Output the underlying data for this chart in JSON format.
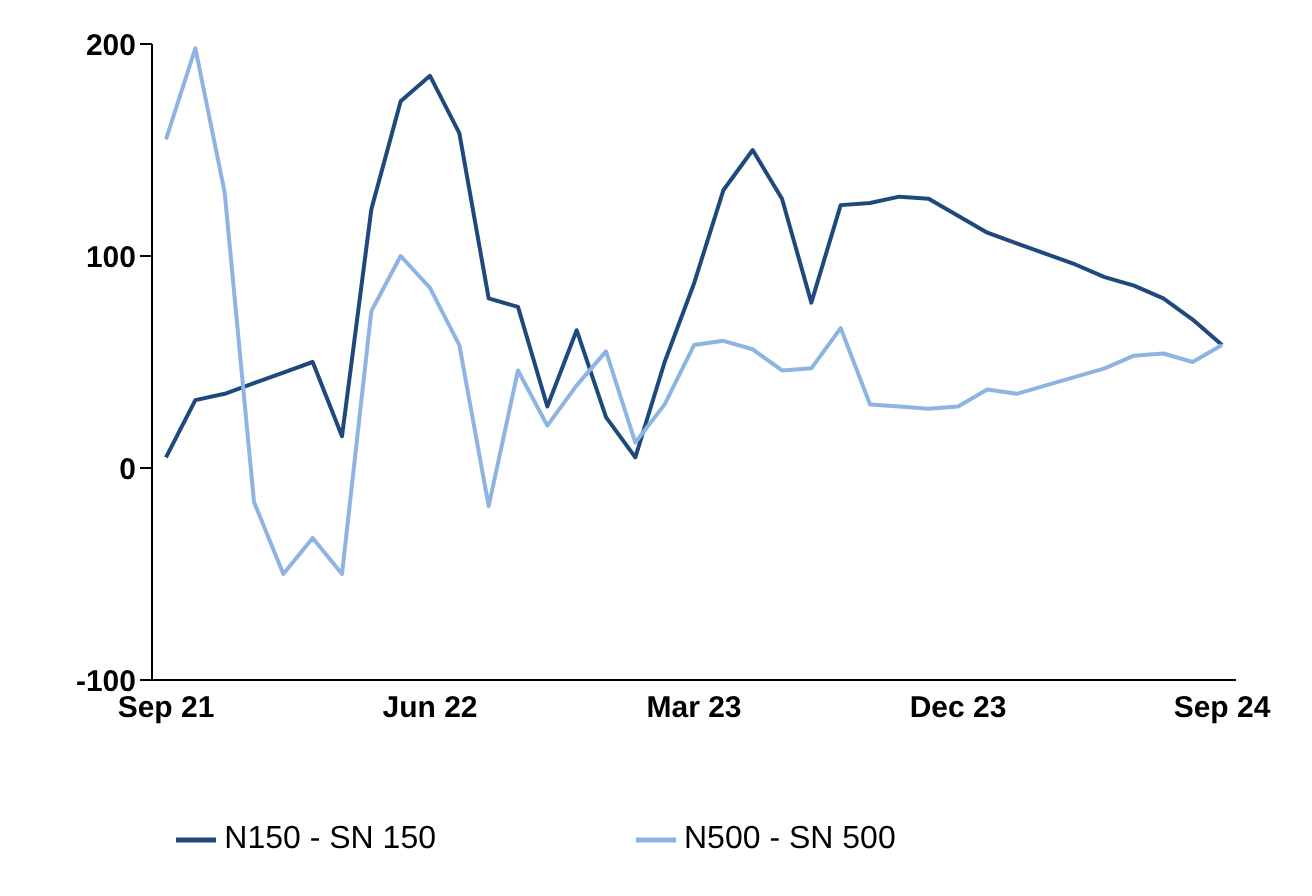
{
  "chart_data": {
    "type": "line",
    "categories": [
      "Sep 21",
      null,
      null,
      null,
      null,
      null,
      null,
      null,
      null,
      "Jun 22",
      null,
      null,
      null,
      null,
      null,
      null,
      null,
      null,
      "Mar 23",
      null,
      null,
      null,
      null,
      null,
      null,
      null,
      null,
      "Dec 23",
      null,
      null,
      null,
      null,
      null,
      null,
      null,
      null,
      "Sep 24"
    ],
    "series": [
      {
        "name": "N150 - SN 150",
        "color": "#1f497d",
        "values": [
          5,
          32,
          35,
          40,
          45,
          50,
          15,
          122,
          173,
          185,
          158,
          80,
          76,
          29,
          65,
          24,
          5,
          50,
          87,
          131,
          150,
          127,
          78,
          124,
          125,
          128,
          127,
          119,
          111,
          106,
          101,
          96,
          90,
          86,
          80,
          70,
          58
        ]
      },
      {
        "name": "N500 - SN 500",
        "color": "#8db4e2",
        "values": [
          155,
          198,
          130,
          -16,
          -50,
          -33,
          -50,
          74,
          100,
          85,
          58,
          -18,
          46,
          20,
          39,
          55,
          12,
          30,
          58,
          60,
          56,
          46,
          47,
          66,
          30,
          29,
          28,
          29,
          37,
          35,
          39,
          43,
          47,
          53,
          54,
          50,
          58
        ]
      }
    ],
    "ylim": [
      -100,
      200
    ],
    "yticks": [
      -100,
      0,
      100,
      200
    ],
    "grid": false,
    "legend": "bottom",
    "marker": "none",
    "line_style": "solid"
  }
}
